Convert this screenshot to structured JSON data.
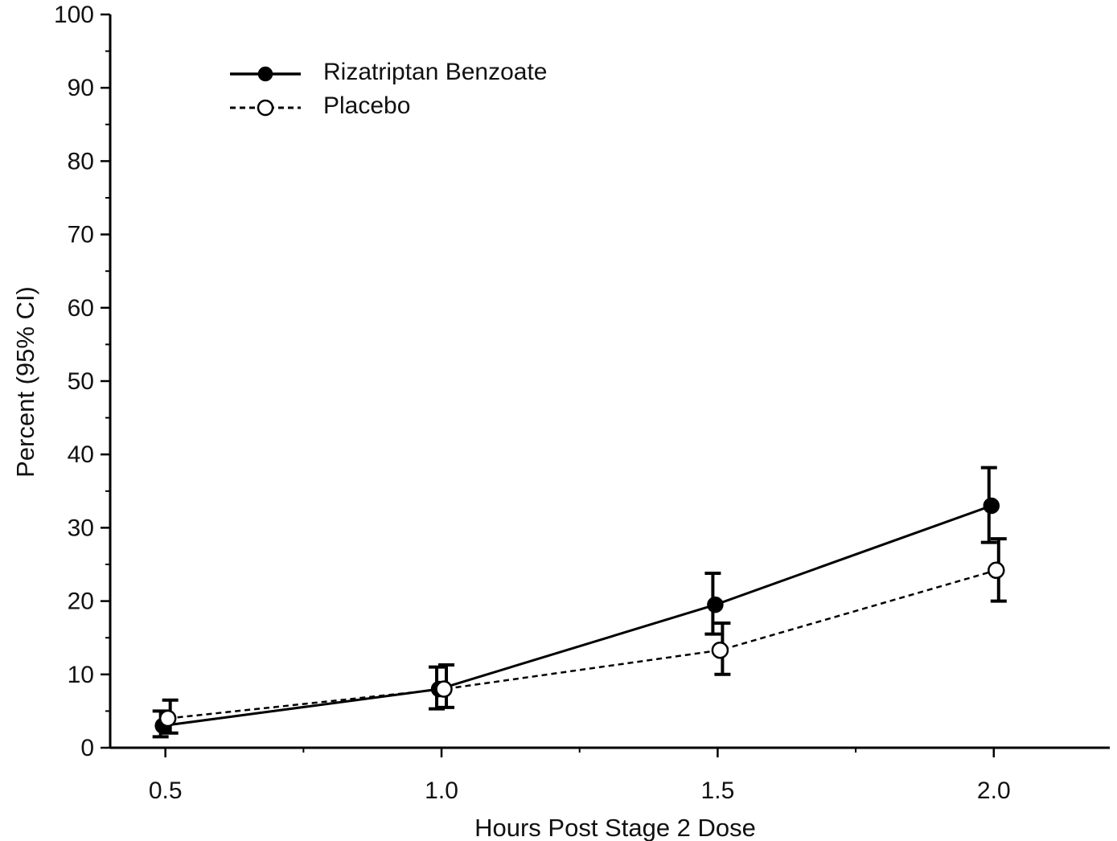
{
  "chart_data": {
    "type": "line",
    "xlabel": "Hours Post Stage 2 Dose",
    "ylabel": "Percent (95% CI)",
    "xlim": [
      0.4,
      2.21
    ],
    "ylim": [
      0,
      100
    ],
    "x_ticks": [
      0.5,
      1.0,
      1.5,
      2.0
    ],
    "x_tick_labels": [
      "0.5",
      "1.0",
      "1.5",
      "2.0"
    ],
    "y_ticks": [
      0,
      10,
      20,
      30,
      40,
      50,
      60,
      70,
      80,
      90,
      100
    ],
    "y_tick_labels": [
      "0",
      "10",
      "20",
      "30",
      "40",
      "50",
      "60",
      "70",
      "80",
      "90",
      "100"
    ],
    "grid": false,
    "legend_position": "top-left",
    "series": [
      {
        "name": "Rizatriptan Benzoate",
        "marker": "filled-circle",
        "line_style": "solid",
        "color": "#000000",
        "x": [
          0.5,
          1.0,
          1.5,
          2.0
        ],
        "y": [
          3,
          8,
          19.5,
          33
        ],
        "ci_low": [
          1.5,
          5.3,
          15.5,
          28
        ],
        "ci_high": [
          5,
          11,
          23.8,
          38.2
        ]
      },
      {
        "name": "Placebo",
        "marker": "open-circle",
        "line_style": "dashed",
        "color": "#000000",
        "x": [
          0.5,
          1.0,
          1.5,
          2.0
        ],
        "y": [
          4,
          8,
          13.3,
          24.2
        ],
        "ci_low": [
          2,
          5.5,
          10,
          20
        ],
        "ci_high": [
          6.5,
          11.3,
          17,
          28.5
        ]
      }
    ]
  }
}
